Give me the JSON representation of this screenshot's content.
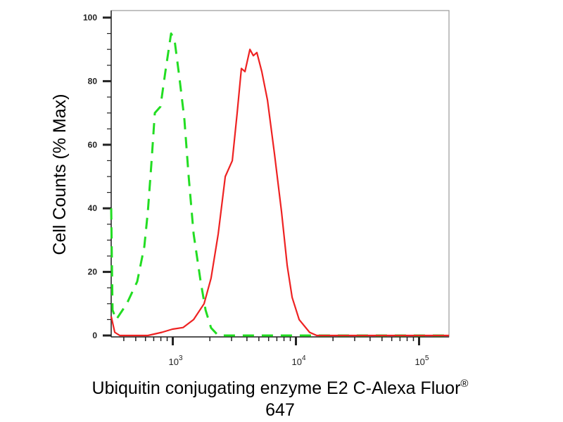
{
  "chart_data": {
    "type": "line",
    "title": "",
    "xlabel": "Ubiquitin conjugating enzyme E2 C-Alexa Fluor® 647",
    "ylabel": "Cell Counts (% Max)",
    "xscale": "log",
    "xlim": [
      316,
      175000
    ],
    "ylim": [
      0,
      103
    ],
    "yticks": [
      0,
      20,
      40,
      60,
      80,
      100
    ],
    "xticks": [
      {
        "value": 1000,
        "base": "10",
        "exp": "3"
      },
      {
        "value": 10000,
        "base": "10",
        "exp": "4"
      },
      {
        "value": 100000,
        "base": "10",
        "exp": "5"
      }
    ],
    "grid": false,
    "legend": "none",
    "series": [
      {
        "color": "#22dd22",
        "style": "dashed",
        "x": [
          316,
          324,
          347,
          423,
          514,
          587,
          627,
          670,
          715,
          794,
          871,
          968,
          1033,
          1132,
          1242,
          1346,
          1476,
          1683,
          1845,
          2046,
          2339,
          175000
        ],
        "y": [
          40,
          8,
          5,
          10,
          17,
          28,
          39,
          54,
          70,
          72,
          83,
          95,
          93,
          81,
          68,
          50,
          32,
          17,
          8,
          2.4,
          0,
          0
        ]
      },
      {
        "color": "#ee2222",
        "style": "solid",
        "x": [
          316,
          338,
          371,
          627,
          815,
          993,
          1211,
          1476,
          1795,
          2046,
          2339,
          2667,
          3041,
          3334,
          3606,
          3855,
          4227,
          4508,
          4819,
          5284,
          5875,
          6699,
          7638,
          8492,
          9311,
          10617,
          12912,
          14757,
          175000
        ],
        "y": [
          6,
          1,
          0,
          0,
          1,
          2,
          2.5,
          5,
          10,
          18,
          32,
          50,
          55,
          70,
          84,
          83,
          90,
          88,
          89,
          83,
          74,
          57,
          39,
          22,
          12,
          5,
          1,
          0,
          0
        ]
      }
    ]
  }
}
